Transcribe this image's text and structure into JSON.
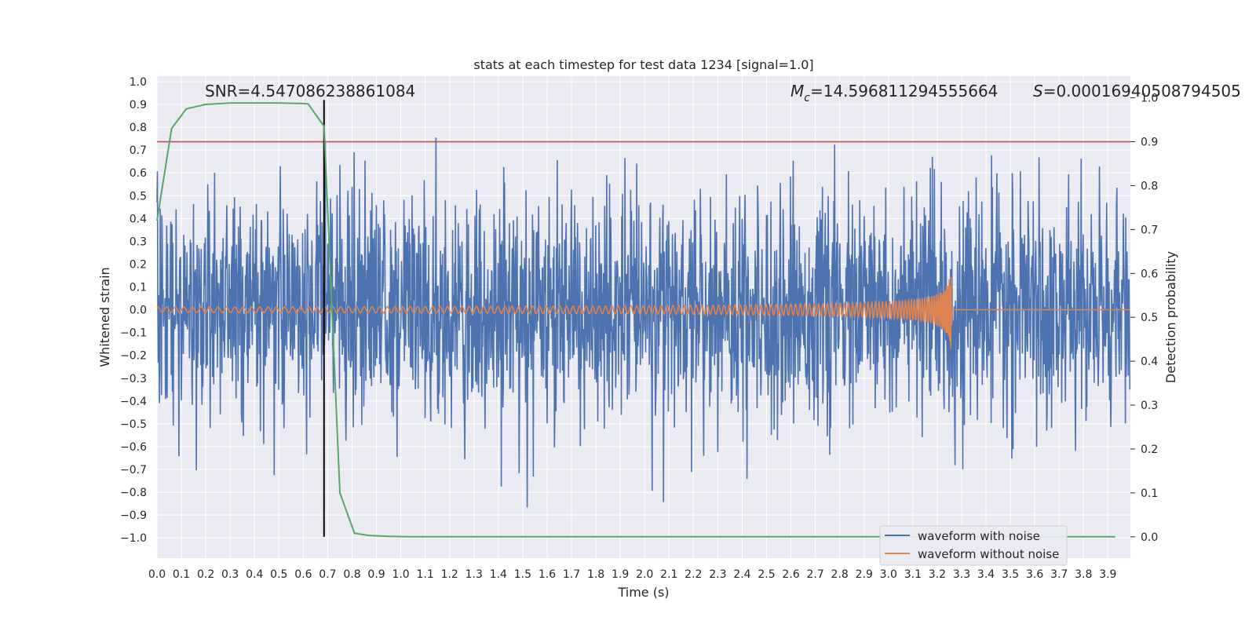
{
  "chart_data": {
    "type": "line",
    "title": "stats at each timestep for test data 1234 [signal=1.0]",
    "xlabel": "Time (s)",
    "ylabel": "Whitened strain",
    "y2label": "Detection probability",
    "xlim": [
      0.0,
      3.99
    ],
    "ylim": [
      -1.1,
      1.03
    ],
    "y2lim": [
      -0.05,
      1.0
    ],
    "x_ticks": [
      "0.0",
      "0.1",
      "0.2",
      "0.3",
      "0.4",
      "0.5",
      "0.6",
      "0.7",
      "0.8",
      "0.9",
      "1.0",
      "1.1",
      "1.2",
      "1.3",
      "1.4",
      "1.5",
      "1.6",
      "1.7",
      "1.8",
      "1.9",
      "2.0",
      "2.1",
      "2.2",
      "2.3",
      "2.4",
      "2.5",
      "2.6",
      "2.7",
      "2.8",
      "2.9",
      "3.0",
      "3.1",
      "3.2",
      "3.3",
      "3.4",
      "3.5",
      "3.6",
      "3.7",
      "3.8",
      "3.9"
    ],
    "y_ticks": [
      "1.0",
      "0.9",
      "0.8",
      "0.7",
      "0.6",
      "0.5",
      "0.4",
      "0.3",
      "0.2",
      "0.1",
      "0.0",
      "−0.1",
      "−0.2",
      "−0.3",
      "−0.4",
      "−0.5",
      "−0.6",
      "−0.7",
      "−0.8",
      "−0.9",
      "−1.0"
    ],
    "y2_ticks": [
      "1.0",
      "0.9",
      "0.8",
      "0.7",
      "0.6",
      "0.5",
      "0.4",
      "0.3",
      "0.2",
      "0.1",
      "0.0"
    ],
    "grid": true,
    "legend_placement": "lower-right",
    "annotations": {
      "snr": "SNR=4.547086238861084",
      "mc_symbol": "M",
      "mc_sub": "c",
      "mc_value": "=14.596811294555664",
      "s_symbol": "S",
      "s_value": "=0.00016940508794505"
    },
    "threshold": {
      "y2": 0.9,
      "color": "#c44e52"
    },
    "marker_time": {
      "x": 0.685,
      "color": "#000000"
    },
    "series": [
      {
        "name": "waveform with noise",
        "color": "#4c72b0",
        "description_values": {
          "x_start": 0.0,
          "x_end": 3.99,
          "amplitude_typical": 0.45,
          "peak_max": 0.93,
          "peak_min": -1.0
        }
      },
      {
        "name": "waveform without noise",
        "color": "#dd8452",
        "chirp": {
          "x_start": 0.0,
          "x_merger": 3.26,
          "amp_start": 0.012,
          "amp_peak": 0.2,
          "amp_min": -0.19
        }
      },
      {
        "name": "detection probability",
        "color": "#55a868",
        "axis": "y2",
        "x": [
          0.0,
          0.06,
          0.12,
          0.2,
          0.3,
          0.4,
          0.5,
          0.6,
          0.62,
          0.685,
          0.75,
          0.81,
          0.87,
          0.95,
          1.05,
          1.5,
          2.0,
          2.5,
          3.0,
          3.5,
          3.93
        ],
        "y": [
          0.72,
          0.93,
          0.975,
          0.985,
          0.988,
          0.988,
          0.988,
          0.987,
          0.986,
          0.935,
          0.1,
          0.008,
          0.003,
          0.001,
          0.0,
          0.0,
          0.0,
          0.0,
          0.0,
          0.0,
          0.0
        ]
      }
    ],
    "legend": [
      "waveform with noise",
      "waveform without noise"
    ]
  }
}
